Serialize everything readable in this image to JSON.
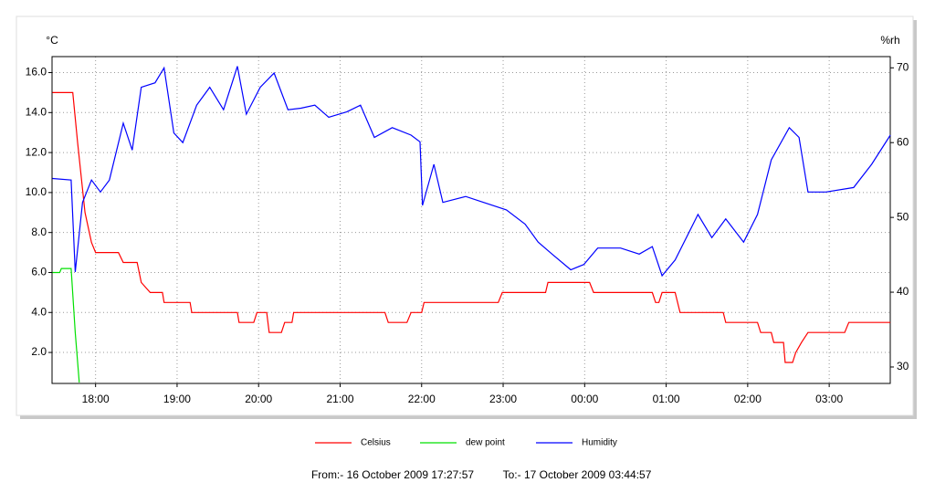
{
  "chart_data": {
    "type": "line",
    "y_label": "°C",
    "y2_label": "%rh",
    "xlim": [
      17.466,
      27.749
    ],
    "xticks": [
      {
        "value": 18,
        "label": "18:00"
      },
      {
        "value": 19,
        "label": "19:00"
      },
      {
        "value": 20,
        "label": "20:00"
      },
      {
        "value": 21,
        "label": "21:00"
      },
      {
        "value": 22,
        "label": "22:00"
      },
      {
        "value": 23,
        "label": "23:00"
      },
      {
        "value": 24,
        "label": "00:00"
      },
      {
        "value": 25,
        "label": "01:00"
      },
      {
        "value": 26,
        "label": "02:00"
      },
      {
        "value": 27,
        "label": "03:00"
      }
    ],
    "ylim": [
      0.45,
      16.8
    ],
    "yticks": [
      {
        "value": 2,
        "label": "2.0"
      },
      {
        "value": 4,
        "label": "4.0"
      },
      {
        "value": 6,
        "label": "6.0"
      },
      {
        "value": 8,
        "label": "8.0"
      },
      {
        "value": 10,
        "label": "10.0"
      },
      {
        "value": 12,
        "label": "12.0"
      },
      {
        "value": 14,
        "label": "14.0"
      },
      {
        "value": 16,
        "label": "16.0"
      }
    ],
    "y2lim": [
      27.8,
      71.5
    ],
    "y2ticks": [
      30,
      40,
      50,
      60,
      70
    ],
    "grid": true,
    "legend": "bottom",
    "series": [
      {
        "name": "Celsius",
        "color": "#ff0000",
        "x": [
          17.47,
          17.72,
          17.78,
          17.87,
          17.95,
          18.0,
          18.28,
          18.34,
          18.51,
          18.56,
          18.67,
          18.82,
          18.84,
          19.16,
          19.18,
          19.74,
          19.76,
          19.94,
          19.98,
          20.1,
          20.13,
          20.28,
          20.32,
          20.41,
          20.43,
          21.55,
          21.59,
          21.82,
          21.87,
          22.0,
          22.03,
          22.94,
          22.99,
          23.52,
          23.55,
          24.06,
          24.11,
          24.83,
          24.87,
          24.91,
          24.95,
          25.11,
          25.17,
          25.7,
          25.73,
          26.12,
          26.16,
          26.29,
          26.32,
          26.44,
          26.46,
          26.55,
          26.59,
          26.66,
          26.74,
          27.19,
          27.24,
          27.75
        ],
        "values": [
          15.0,
          15.0,
          12.5,
          9.0,
          7.5,
          7.0,
          7.0,
          6.5,
          6.5,
          5.5,
          5.0,
          5.0,
          4.5,
          4.5,
          4.0,
          4.0,
          3.5,
          3.5,
          4.0,
          4.0,
          3.0,
          3.0,
          3.5,
          3.5,
          4.0,
          4.0,
          3.5,
          3.5,
          4.0,
          4.0,
          4.5,
          4.5,
          5.0,
          5.0,
          5.5,
          5.5,
          5.0,
          5.0,
          4.5,
          4.5,
          5.0,
          5.0,
          4.0,
          4.0,
          3.5,
          3.5,
          3.0,
          3.0,
          2.5,
          2.5,
          1.5,
          1.5,
          2.0,
          2.5,
          3.0,
          3.0,
          3.5,
          3.5
        ]
      },
      {
        "name": "dew point",
        "color": "#00e000",
        "x": [
          17.47,
          17.56,
          17.58,
          17.7,
          17.75,
          17.8
        ],
        "values": [
          6.0,
          6.0,
          6.2,
          6.2,
          3.0,
          0.5
        ]
      },
      {
        "name": "Humidity",
        "color": "#0000ff",
        "axis": "y2",
        "x": [
          17.47,
          17.7,
          17.75,
          17.84,
          17.95,
          18.06,
          18.17,
          18.34,
          18.45,
          18.56,
          18.73,
          18.84,
          18.96,
          19.07,
          19.24,
          19.4,
          19.57,
          19.74,
          19.85,
          20.02,
          20.19,
          20.36,
          20.52,
          20.69,
          20.86,
          21.08,
          21.25,
          21.42,
          21.64,
          21.87,
          21.98,
          22.01,
          22.15,
          22.26,
          22.54,
          22.76,
          23.04,
          23.27,
          23.43,
          23.6,
          23.83,
          23.99,
          24.16,
          24.44,
          24.67,
          24.83,
          24.95,
          25.11,
          25.39,
          25.56,
          25.73,
          25.95,
          26.12,
          26.29,
          26.51,
          26.63,
          26.74,
          26.96,
          27.3,
          27.52,
          27.75
        ],
        "values": [
          55.2,
          55,
          42.7,
          52,
          55,
          53.4,
          55,
          62.6,
          59,
          67.4,
          68,
          70,
          61.3,
          60,
          65,
          67.4,
          64.4,
          70.2,
          63.8,
          67.4,
          69.3,
          64.4,
          64.6,
          65,
          63.4,
          64.1,
          65,
          60.7,
          62,
          61,
          60.1,
          51.6,
          57.1,
          52,
          52.8,
          52,
          51,
          49.1,
          46.7,
          45.1,
          43,
          43.7,
          45.9,
          45.9,
          45.1,
          46.1,
          42.2,
          44.3,
          50.4,
          47.3,
          49.8,
          46.7,
          50.4,
          57.7,
          62,
          60.7,
          53.4,
          53.4,
          54,
          57.1,
          61
        ]
      }
    ],
    "footer": [
      "From:-  16 October 2009 17:27:57",
      "To:-  17 October 2009 03:44:57"
    ]
  }
}
